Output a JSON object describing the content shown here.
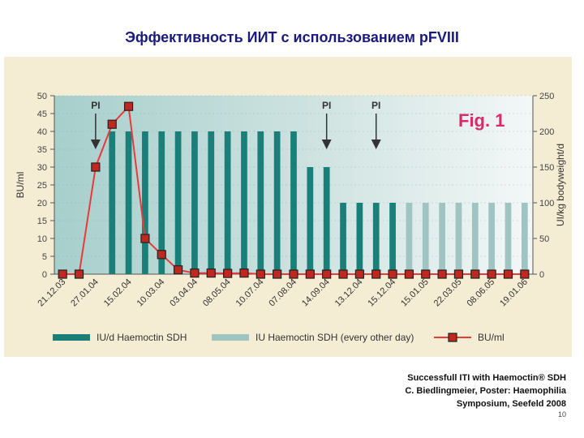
{
  "slide": {
    "title": "Эффективность ИИТ с использованием pFVIII",
    "credit": [
      "Successfull ITI with Haemoctin® SDH",
      "C. Biedlingmeier, Poster: Haemophilia",
      "Symposium, Seefeld 2008"
    ],
    "page_number": "10"
  },
  "chart_data": {
    "type": "bar",
    "figure_label": "Fig. 1",
    "x": [
      "21.12.03",
      "",
      "27.01.04",
      "",
      "15.02.04",
      "",
      "10.03.04",
      "",
      "03.04.04",
      "",
      "08.05.04",
      "",
      "10.07.04",
      "",
      "07.08.04",
      "",
      "14.09.04",
      "",
      "13.12.04",
      "",
      "15.12.04",
      "",
      "15.01.05",
      "",
      "22.03.05",
      "",
      "08.06.05",
      "",
      "19.01.06"
    ],
    "tick_labels": [
      "21.12.03",
      "27.01.04",
      "15.02.04",
      "10.03.04",
      "03.04.04",
      "08.05.04",
      "10.07.04",
      "07.08.04",
      "14.09.04",
      "13.12.04",
      "15.12.04",
      "15.01.05",
      "22.03.05",
      "08.06.05",
      "19.01.06"
    ],
    "ylabel": "BU/ml",
    "ylim": [
      0,
      50
    ],
    "yticks": [
      0,
      5,
      10,
      15,
      20,
      25,
      30,
      35,
      40,
      45,
      50
    ],
    "y2label": "UI/kg bodyweight/d",
    "y2lim": [
      0,
      250
    ],
    "y2ticks": [
      0,
      50,
      100,
      150,
      200,
      250
    ],
    "series": [
      {
        "name": "IU/d Haemoctin SDH",
        "axis": "right",
        "color": "#1b7f79",
        "values": [
          0,
          0,
          0,
          200,
          200,
          200,
          200,
          200,
          200,
          200,
          200,
          200,
          200,
          200,
          200,
          150,
          150,
          100,
          100,
          100,
          100,
          0,
          0,
          0,
          0,
          0,
          0,
          0,
          0
        ]
      },
      {
        "name": "IU Haemoctin SDH (every other day)",
        "axis": "right",
        "color": "#9fc4c2",
        "values": [
          0,
          0,
          0,
          0,
          0,
          0,
          0,
          0,
          0,
          0,
          0,
          0,
          0,
          0,
          0,
          0,
          0,
          0,
          0,
          0,
          0,
          100,
          100,
          100,
          100,
          100,
          100,
          100,
          100
        ]
      },
      {
        "name": "BU/ml",
        "axis": "left",
        "color": "#e83a3a",
        "values": [
          0,
          0,
          30,
          42,
          47,
          10,
          5.5,
          1.2,
          0.3,
          0.3,
          0.2,
          0.3,
          0,
          0,
          0,
          0,
          0,
          0,
          0,
          0,
          0,
          0,
          0,
          0,
          0,
          0,
          0,
          0,
          0
        ]
      }
    ],
    "annotations": [
      {
        "text": "PI",
        "index": 2
      },
      {
        "text": "PI",
        "index": 16
      },
      {
        "text": "PI",
        "index": 19
      }
    ]
  }
}
